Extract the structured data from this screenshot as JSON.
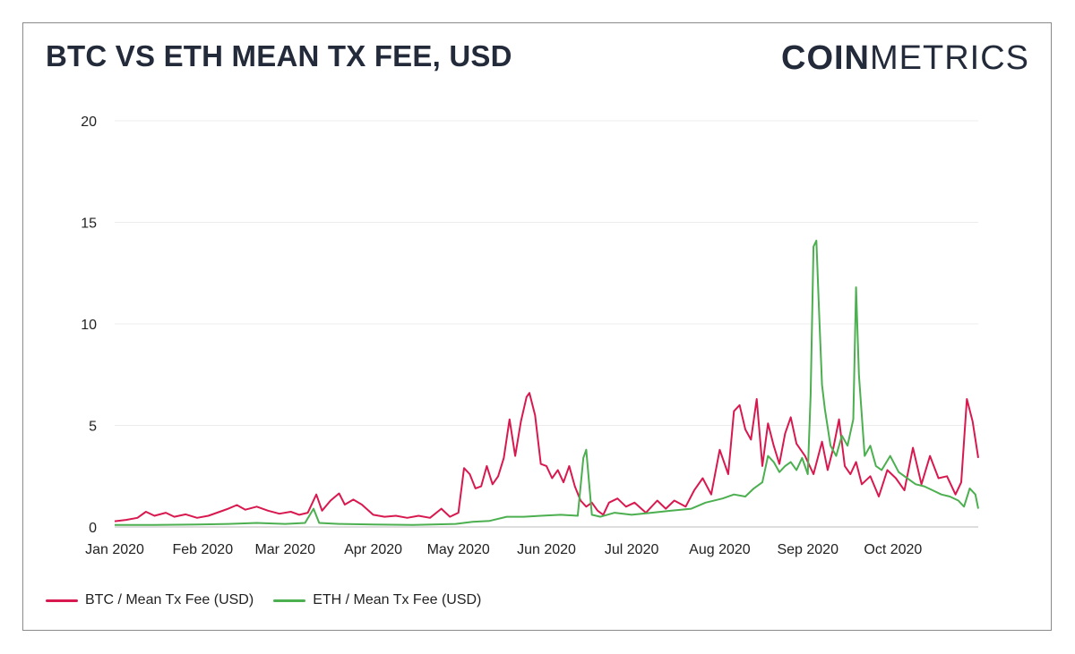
{
  "header": {
    "title": "BTC VS ETH MEAN TX FEE, USD",
    "logo_bold": "COIN",
    "logo_light": "METRICS"
  },
  "colors": {
    "btc": "#d8194f",
    "eth": "#4caf50"
  },
  "chart_data": {
    "type": "line",
    "title": "BTC VS ETH MEAN TX FEE, USD",
    "xlabel": "",
    "ylabel": "",
    "ylim": [
      0,
      20
    ],
    "y_ticks": [
      "0",
      "5",
      "10",
      "15",
      "20"
    ],
    "x_ticks": [
      "Jan 2020",
      "Feb 2020",
      "Mar 2020",
      "Apr 2020",
      "May 2020",
      "Jun 2020",
      "Jul 2020",
      "Aug 2020",
      "Sep 2020",
      "Oct 2020"
    ],
    "xlim": [
      "2020-01-01",
      "2020-10-31"
    ],
    "grid": true,
    "legend": "bottom-left",
    "series": [
      {
        "name": "BTC / Mean Tx Fee (USD)",
        "color": "#d8194f",
        "points": [
          [
            "2020-01-01",
            0.28
          ],
          [
            "2020-01-05",
            0.35
          ],
          [
            "2020-01-09",
            0.45
          ],
          [
            "2020-01-12",
            0.75
          ],
          [
            "2020-01-15",
            0.55
          ],
          [
            "2020-01-19",
            0.7
          ],
          [
            "2020-01-22",
            0.5
          ],
          [
            "2020-01-26",
            0.62
          ],
          [
            "2020-01-30",
            0.45
          ],
          [
            "2020-02-03",
            0.55
          ],
          [
            "2020-02-07",
            0.75
          ],
          [
            "2020-02-10",
            0.9
          ],
          [
            "2020-02-13",
            1.08
          ],
          [
            "2020-02-16",
            0.85
          ],
          [
            "2020-02-20",
            1.0
          ],
          [
            "2020-02-24",
            0.8
          ],
          [
            "2020-02-28",
            0.65
          ],
          [
            "2020-03-03",
            0.75
          ],
          [
            "2020-03-06",
            0.6
          ],
          [
            "2020-03-09",
            0.7
          ],
          [
            "2020-03-12",
            1.6
          ],
          [
            "2020-03-14",
            0.8
          ],
          [
            "2020-03-17",
            1.3
          ],
          [
            "2020-03-20",
            1.65
          ],
          [
            "2020-03-22",
            1.1
          ],
          [
            "2020-03-25",
            1.35
          ],
          [
            "2020-03-28",
            1.1
          ],
          [
            "2020-04-01",
            0.6
          ],
          [
            "2020-04-05",
            0.5
          ],
          [
            "2020-04-09",
            0.55
          ],
          [
            "2020-04-13",
            0.45
          ],
          [
            "2020-04-17",
            0.55
          ],
          [
            "2020-04-21",
            0.45
          ],
          [
            "2020-04-25",
            0.9
          ],
          [
            "2020-04-28",
            0.5
          ],
          [
            "2020-05-01",
            0.7
          ],
          [
            "2020-05-03",
            2.9
          ],
          [
            "2020-05-05",
            2.6
          ],
          [
            "2020-05-07",
            1.9
          ],
          [
            "2020-05-09",
            2.0
          ],
          [
            "2020-05-11",
            3.0
          ],
          [
            "2020-05-13",
            2.1
          ],
          [
            "2020-05-15",
            2.5
          ],
          [
            "2020-05-17",
            3.4
          ],
          [
            "2020-05-19",
            5.3
          ],
          [
            "2020-05-21",
            3.5
          ],
          [
            "2020-05-23",
            5.2
          ],
          [
            "2020-05-25",
            6.4
          ],
          [
            "2020-05-26",
            6.6
          ],
          [
            "2020-05-28",
            5.5
          ],
          [
            "2020-05-30",
            3.1
          ],
          [
            "2020-06-01",
            3.0
          ],
          [
            "2020-06-03",
            2.4
          ],
          [
            "2020-06-05",
            2.8
          ],
          [
            "2020-06-07",
            2.2
          ],
          [
            "2020-06-09",
            3.0
          ],
          [
            "2020-06-11",
            2.0
          ],
          [
            "2020-06-13",
            1.3
          ],
          [
            "2020-06-15",
            1.0
          ],
          [
            "2020-06-17",
            1.2
          ],
          [
            "2020-06-19",
            0.8
          ],
          [
            "2020-06-21",
            0.6
          ],
          [
            "2020-06-23",
            1.2
          ],
          [
            "2020-06-26",
            1.4
          ],
          [
            "2020-06-29",
            1.0
          ],
          [
            "2020-07-02",
            1.2
          ],
          [
            "2020-07-06",
            0.7
          ],
          [
            "2020-07-10",
            1.3
          ],
          [
            "2020-07-13",
            0.9
          ],
          [
            "2020-07-16",
            1.3
          ],
          [
            "2020-07-20",
            1.0
          ],
          [
            "2020-07-23",
            1.8
          ],
          [
            "2020-07-26",
            2.4
          ],
          [
            "2020-07-29",
            1.6
          ],
          [
            "2020-08-01",
            3.8
          ],
          [
            "2020-08-04",
            2.6
          ],
          [
            "2020-08-06",
            5.7
          ],
          [
            "2020-08-08",
            6.0
          ],
          [
            "2020-08-10",
            4.8
          ],
          [
            "2020-08-12",
            4.3
          ],
          [
            "2020-08-14",
            6.3
          ],
          [
            "2020-08-16",
            3.0
          ],
          [
            "2020-08-18",
            5.1
          ],
          [
            "2020-08-20",
            4.0
          ],
          [
            "2020-08-22",
            3.1
          ],
          [
            "2020-08-24",
            4.6
          ],
          [
            "2020-08-26",
            5.4
          ],
          [
            "2020-08-28",
            4.1
          ],
          [
            "2020-08-31",
            3.5
          ],
          [
            "2020-09-03",
            2.6
          ],
          [
            "2020-09-06",
            4.2
          ],
          [
            "2020-09-08",
            2.8
          ],
          [
            "2020-09-10",
            3.9
          ],
          [
            "2020-09-12",
            5.3
          ],
          [
            "2020-09-14",
            3.0
          ],
          [
            "2020-09-16",
            2.6
          ],
          [
            "2020-09-18",
            3.2
          ],
          [
            "2020-09-20",
            2.1
          ],
          [
            "2020-09-23",
            2.5
          ],
          [
            "2020-09-26",
            1.5
          ],
          [
            "2020-09-29",
            2.8
          ],
          [
            "2020-10-02",
            2.4
          ],
          [
            "2020-10-05",
            1.8
          ],
          [
            "2020-10-08",
            3.9
          ],
          [
            "2020-10-11",
            2.1
          ],
          [
            "2020-10-14",
            3.5
          ],
          [
            "2020-10-17",
            2.4
          ],
          [
            "2020-10-20",
            2.5
          ],
          [
            "2020-10-23",
            1.6
          ],
          [
            "2020-10-25",
            2.2
          ],
          [
            "2020-10-27",
            6.3
          ],
          [
            "2020-10-29",
            5.2
          ],
          [
            "2020-10-31",
            3.4
          ]
        ]
      },
      {
        "name": "ETH / Mean Tx Fee (USD)",
        "color": "#4caf50",
        "points": [
          [
            "2020-01-01",
            0.1
          ],
          [
            "2020-01-15",
            0.1
          ],
          [
            "2020-01-30",
            0.12
          ],
          [
            "2020-02-10",
            0.15
          ],
          [
            "2020-02-20",
            0.2
          ],
          [
            "2020-03-01",
            0.15
          ],
          [
            "2020-03-08",
            0.2
          ],
          [
            "2020-03-11",
            0.9
          ],
          [
            "2020-03-13",
            0.2
          ],
          [
            "2020-03-20",
            0.15
          ],
          [
            "2020-04-01",
            0.12
          ],
          [
            "2020-04-15",
            0.1
          ],
          [
            "2020-04-30",
            0.15
          ],
          [
            "2020-05-06",
            0.25
          ],
          [
            "2020-05-12",
            0.3
          ],
          [
            "2020-05-18",
            0.5
          ],
          [
            "2020-05-24",
            0.5
          ],
          [
            "2020-05-30",
            0.55
          ],
          [
            "2020-06-06",
            0.6
          ],
          [
            "2020-06-12",
            0.55
          ],
          [
            "2020-06-14",
            3.4
          ],
          [
            "2020-06-15",
            3.8
          ],
          [
            "2020-06-17",
            0.6
          ],
          [
            "2020-06-20",
            0.5
          ],
          [
            "2020-06-25",
            0.7
          ],
          [
            "2020-07-01",
            0.6
          ],
          [
            "2020-07-08",
            0.7
          ],
          [
            "2020-07-15",
            0.8
          ],
          [
            "2020-07-22",
            0.9
          ],
          [
            "2020-07-27",
            1.2
          ],
          [
            "2020-08-02",
            1.4
          ],
          [
            "2020-08-06",
            1.6
          ],
          [
            "2020-08-10",
            1.5
          ],
          [
            "2020-08-13",
            1.9
          ],
          [
            "2020-08-16",
            2.2
          ],
          [
            "2020-08-18",
            3.5
          ],
          [
            "2020-08-20",
            3.2
          ],
          [
            "2020-08-22",
            2.7
          ],
          [
            "2020-08-24",
            3.0
          ],
          [
            "2020-08-26",
            3.2
          ],
          [
            "2020-08-28",
            2.8
          ],
          [
            "2020-08-30",
            3.4
          ],
          [
            "2020-09-01",
            2.6
          ],
          [
            "2020-09-02",
            6.5
          ],
          [
            "2020-09-03",
            13.8
          ],
          [
            "2020-09-04",
            14.1
          ],
          [
            "2020-09-05",
            10.5
          ],
          [
            "2020-09-06",
            7.0
          ],
          [
            "2020-09-07",
            5.8
          ],
          [
            "2020-09-09",
            4.0
          ],
          [
            "2020-09-11",
            3.5
          ],
          [
            "2020-09-13",
            4.5
          ],
          [
            "2020-09-15",
            4.0
          ],
          [
            "2020-09-17",
            5.3
          ],
          [
            "2020-09-18",
            11.8
          ],
          [
            "2020-09-19",
            7.5
          ],
          [
            "2020-09-21",
            3.5
          ],
          [
            "2020-09-23",
            4.0
          ],
          [
            "2020-09-25",
            3.0
          ],
          [
            "2020-09-27",
            2.8
          ],
          [
            "2020-09-30",
            3.5
          ],
          [
            "2020-10-03",
            2.7
          ],
          [
            "2020-10-06",
            2.4
          ],
          [
            "2020-10-09",
            2.1
          ],
          [
            "2020-10-12",
            2.0
          ],
          [
            "2020-10-15",
            1.8
          ],
          [
            "2020-10-18",
            1.6
          ],
          [
            "2020-10-21",
            1.5
          ],
          [
            "2020-10-24",
            1.3
          ],
          [
            "2020-10-26",
            1.0
          ],
          [
            "2020-10-28",
            1.9
          ],
          [
            "2020-10-30",
            1.6
          ],
          [
            "2020-10-31",
            0.9
          ]
        ]
      }
    ]
  }
}
